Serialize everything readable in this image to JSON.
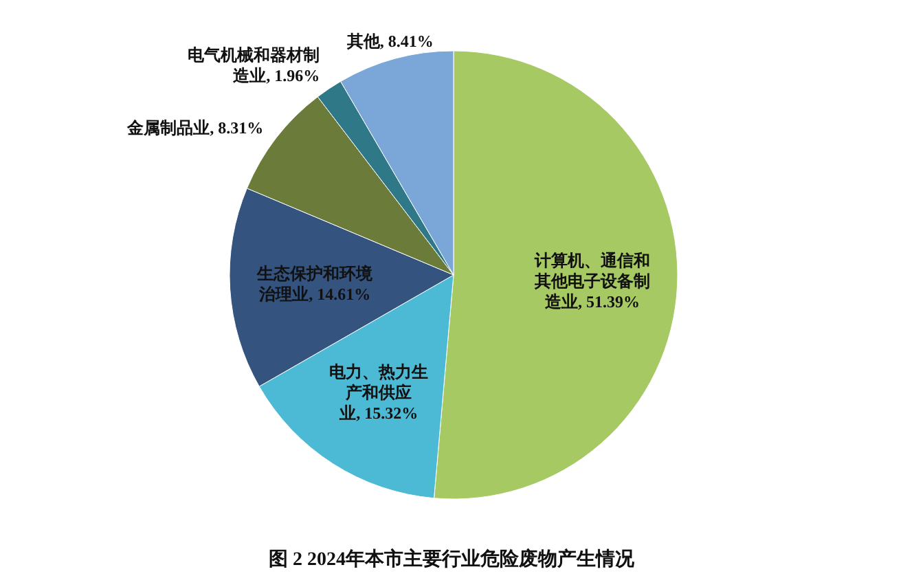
{
  "chart_data": {
    "type": "pie",
    "title": "图 2 2024年本市主要行业危险废物产生情况",
    "categories": [
      "计算机、通信和其他电子设备制造业",
      "电力、热力生产和供应业",
      "生态保护和环境治理业",
      "金属制品业",
      "电气机械和器材制造业",
      "其他"
    ],
    "values": [
      51.39,
      15.32,
      14.61,
      8.31,
      1.96,
      8.41
    ],
    "colors": [
      "#a6c964",
      "#4cb9d5",
      "#34547f",
      "#6b7c3a",
      "#2e7888",
      "#7ba6d8"
    ],
    "value_labels": [
      "51.39%",
      "15.32%",
      "14.61%",
      "8.31%",
      "1.96%",
      "8.41%"
    ]
  }
}
